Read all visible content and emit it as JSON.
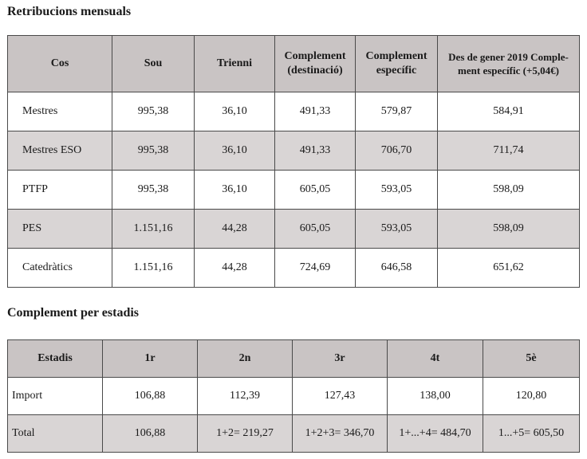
{
  "sections": {
    "monthly_title": "Retribucions mensuals",
    "stages_title": "Complement per estadis"
  },
  "monthly": {
    "headers": [
      "Cos",
      "Sou",
      "Trienni",
      "Complement (destinació)",
      "Complement específic",
      "Des de gener 2019 Complement específic (+5,04€)"
    ],
    "header_lines": {
      "h3a": "Complement",
      "h3b": "(destinació)",
      "h4a": "Complement",
      "h4b": "específic",
      "h5a": "Des de gener 2019 Comple-",
      "h5b": "ment específic (+5,04€)"
    },
    "rows": [
      [
        "Mestres",
        "995,38",
        "36,10",
        "491,33",
        "579,87",
        "584,91"
      ],
      [
        "Mestres ESO",
        "995,38",
        "36,10",
        "491,33",
        "706,70",
        "711,74"
      ],
      [
        "PTFP",
        "995,38",
        "36,10",
        "605,05",
        "593,05",
        "598,09"
      ],
      [
        "PES",
        "1.151,16",
        "44,28",
        "605,05",
        "593,05",
        "598,09"
      ],
      [
        "Catedràtics",
        "1.151,16",
        "44,28",
        "724,69",
        "646,58",
        "651,62"
      ]
    ]
  },
  "stages": {
    "headers": [
      "Estadis",
      "1r",
      "2n",
      "3r",
      "4t",
      "5è"
    ],
    "rows": [
      [
        "Import",
        "106,88",
        "112,39",
        "127,43",
        "138,00",
        "120,80"
      ],
      [
        "Total",
        "106,88",
        "1+2= 219,27",
        "1+2+3= 346,70",
        "1+...+4= 484,70",
        "1...+5= 605,50"
      ]
    ]
  }
}
